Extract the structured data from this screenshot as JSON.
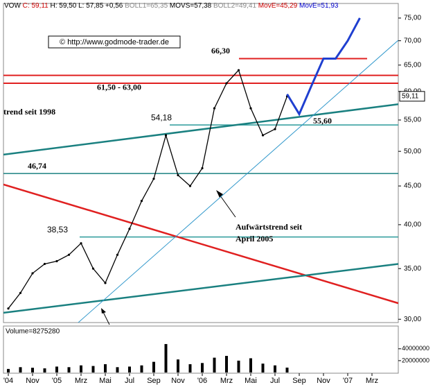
{
  "chart_data": {
    "type": "line",
    "header": [
      {
        "text": "VOW",
        "color": "#000000"
      },
      {
        "text": "C: 59,11",
        "color": "#cc0000"
      },
      {
        "text": "H: 59,50",
        "color": "#000000"
      },
      {
        "text": "L: 57,85",
        "color": "#000000"
      },
      {
        "text": "+0,56",
        "color": "#000000"
      },
      {
        "text": "BOLL1=65,35",
        "color": "#888888"
      },
      {
        "text": "MOVS=57,38",
        "color": "#000000"
      },
      {
        "text": "BOLL2=49,41",
        "color": "#888888"
      },
      {
        "text": "MovE=45,29",
        "color": "#cc0000"
      },
      {
        "text": "MovE=51,93",
        "color": "#0000cc"
      }
    ],
    "watermark": "© http://www.godmode-trader.de",
    "categories": [
      "'04",
      null,
      "Nov",
      null,
      "'05",
      null,
      "Mrz",
      null,
      "Mai",
      null,
      "Jul",
      null,
      "Sep",
      null,
      "Nov",
      null,
      "'06",
      null,
      "Mrz",
      null,
      "Mai",
      null,
      "Jul",
      null,
      "Sep",
      null,
      "Nov",
      null,
      "'07",
      null,
      "Mrz"
    ],
    "series": [
      {
        "color": "#000000",
        "values": [
          31.0,
          32.5,
          34.5,
          35.5,
          35.8,
          36.5,
          37.8,
          35.0,
          33.5,
          36.5,
          39.5,
          43.0,
          46.0,
          52.5,
          46.5,
          45.0,
          47.5,
          57.0,
          61.5,
          64.0,
          57.0,
          52.5,
          53.5,
          59.11,
          null,
          null,
          null,
          null,
          null,
          null,
          null
        ]
      },
      {
        "color": "#1f3fd0",
        "values": [
          null,
          null,
          null,
          null,
          null,
          null,
          null,
          null,
          null,
          null,
          null,
          null,
          null,
          null,
          null,
          null,
          null,
          null,
          null,
          null,
          null,
          null,
          null,
          59.5,
          56.0,
          61.0,
          66.3,
          66.3,
          70.0,
          75.0,
          null
        ]
      }
    ],
    "levels": [
      {
        "value": 63.0,
        "color": "#e02020",
        "label": "61,50 - 63,00"
      },
      {
        "value": 61.5,
        "color": "#e02020"
      },
      {
        "value": 66.3,
        "color": "#e02020",
        "label": "66,30"
      },
      {
        "value": 54.18,
        "color": "#2a9a9a",
        "label": "54,18"
      },
      {
        "value": 46.74,
        "color": "#1a8080",
        "label": "46,74"
      },
      {
        "value": 38.53,
        "color": "#2a9a9a",
        "label": "38,53"
      }
    ],
    "trendlines": [
      {
        "color": "#1a8080",
        "values": [
          49.5,
          57.7
        ],
        "label": "trend seit 1998"
      },
      {
        "color": "#e02020",
        "values": [
          45.2,
          31.5
        ]
      },
      {
        "color": "#1a8080",
        "values": [
          30.6,
          35.5
        ]
      },
      {
        "color": "#3399cc",
        "values": [
          24.3,
          70.1
        ],
        "label": "Aufwärtstrend seit",
        "label2": "April 2005"
      }
    ],
    "support_label": "55,60",
    "last_price": {
      "value": 59.11,
      "label": "59,11"
    },
    "log_scale": true,
    "ylim": [
      29.7,
      78.4
    ],
    "yticks": [
      {
        "value": 30,
        "label": "30,00"
      },
      {
        "value": 35,
        "label": "35,00"
      },
      {
        "value": 40,
        "label": "40,00"
      },
      {
        "value": 45,
        "label": "45,00"
      },
      {
        "value": 50,
        "label": "50,00"
      },
      {
        "value": 55,
        "label": "55,00"
      },
      {
        "value": 60,
        "label": "60,00"
      },
      {
        "value": 65,
        "label": "65,00"
      },
      {
        "value": 70,
        "label": "70,00"
      },
      {
        "value": 75,
        "label": "75,00"
      }
    ],
    "volume": {
      "title": "Volume=8275280",
      "color": "#000000",
      "values": [
        6000000,
        9000000,
        8000000,
        7000000,
        10000000,
        9000000,
        12000000,
        11000000,
        14000000,
        9000000,
        10000000,
        12000000,
        18000000,
        48000000,
        22000000,
        14000000,
        16000000,
        25000000,
        28000000,
        20000000,
        24000000,
        15000000,
        12000000,
        8275280,
        null,
        null,
        null,
        null,
        null,
        null,
        null
      ],
      "ylim": [
        0,
        69000000
      ],
      "yticks": [
        {
          "value": 20000000,
          "label": "20000000"
        },
        {
          "value": 40000000,
          "label": "40000000"
        }
      ]
    }
  }
}
